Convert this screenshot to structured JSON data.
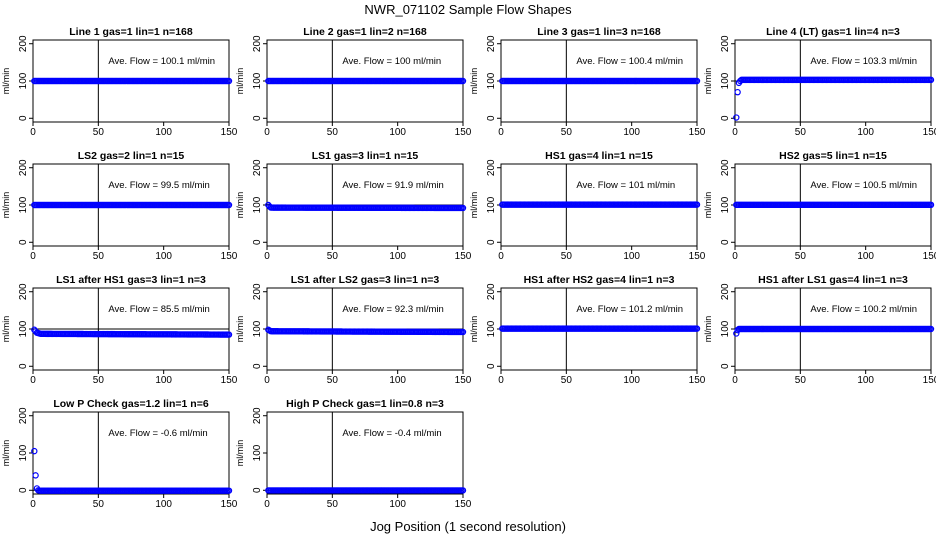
{
  "title": "NWR_071102  Sample Flow Shapes",
  "xlabel": "Jog Position (1 second resolution)",
  "chart_data": [
    {
      "type": "scatter",
      "title": "Line 1 gas=1 lin=1 n=168",
      "ylabel": "ml/min",
      "annotation": "Ave. Flow = 100.1 ml/min",
      "vline": 50,
      "hline": 100,
      "xlim": [
        0,
        150
      ],
      "ylim": [
        -10,
        210
      ],
      "xticks": [
        0,
        50,
        100,
        150
      ],
      "yticks": [
        0,
        100,
        200
      ],
      "color": "#0000ff",
      "series": [
        {
          "x": [
            1,
            150
          ],
          "y": [
            100,
            100
          ],
          "mode": "dense"
        }
      ]
    },
    {
      "type": "scatter",
      "title": "Line 2 gas=1 lin=2 n=168",
      "ylabel": "ml/min",
      "annotation": "Ave. Flow = 100 ml/min",
      "vline": 50,
      "hline": 100,
      "xlim": [
        0,
        150
      ],
      "ylim": [
        -10,
        210
      ],
      "xticks": [
        0,
        50,
        100,
        150
      ],
      "yticks": [
        0,
        100,
        200
      ],
      "color": "#0000ff",
      "series": [
        {
          "x": [
            1,
            150
          ],
          "y": [
            100,
            100
          ],
          "mode": "dense"
        }
      ]
    },
    {
      "type": "scatter",
      "title": "Line 3 gas=1 lin=3 n=168",
      "ylabel": "ml/min",
      "annotation": "Ave. Flow = 100.4 ml/min",
      "vline": 50,
      "hline": 100,
      "xlim": [
        0,
        150
      ],
      "ylim": [
        -10,
        210
      ],
      "xticks": [
        0,
        50,
        100,
        150
      ],
      "yticks": [
        0,
        100,
        200
      ],
      "color": "#0000ff",
      "series": [
        {
          "x": [
            1,
            150
          ],
          "y": [
            100,
            100
          ],
          "mode": "dense"
        }
      ]
    },
    {
      "type": "scatter",
      "title": "Line 4 (LT) gas=1 lin=4 n=3",
      "ylabel": "ml/min",
      "annotation": "Ave. Flow = 103.3 ml/min",
      "vline": 50,
      "hline": 100,
      "xlim": [
        0,
        150
      ],
      "ylim": [
        -10,
        210
      ],
      "xticks": [
        0,
        50,
        100,
        150
      ],
      "yticks": [
        0,
        100,
        200
      ],
      "color": "#0000ff",
      "series": [
        {
          "x": [
            1,
            2,
            3,
            4,
            5,
            150
          ],
          "y": [
            2,
            70,
            95,
            100,
            103,
            103
          ],
          "mode": "dense_from_4"
        }
      ]
    },
    {
      "type": "scatter",
      "title": "LS2 gas=2 lin=1 n=15",
      "ylabel": "ml/min",
      "annotation": "Ave. Flow = 99.5 ml/min",
      "vline": 50,
      "hline": 100,
      "xlim": [
        0,
        150
      ],
      "ylim": [
        -10,
        210
      ],
      "xticks": [
        0,
        50,
        100,
        150
      ],
      "yticks": [
        0,
        100,
        200
      ],
      "color": "#0000ff",
      "series": [
        {
          "x": [
            1,
            150
          ],
          "y": [
            100,
            100
          ],
          "mode": "dense"
        }
      ]
    },
    {
      "type": "scatter",
      "title": "LS1 gas=3 lin=1 n=15",
      "ylabel": "ml/min",
      "annotation": "Ave. Flow = 91.9 ml/min",
      "vline": 50,
      "hline": 100,
      "xlim": [
        0,
        150
      ],
      "ylim": [
        -10,
        210
      ],
      "xticks": [
        0,
        50,
        100,
        150
      ],
      "yticks": [
        0,
        100,
        200
      ],
      "color": "#0000ff",
      "series": [
        {
          "x": [
            1,
            2,
            3,
            150
          ],
          "y": [
            100,
            96,
            93,
            92
          ],
          "mode": "dense"
        }
      ]
    },
    {
      "type": "scatter",
      "title": "HS1 gas=4 lin=1 n=15",
      "ylabel": "ml/min",
      "annotation": "Ave. Flow = 101 ml/min",
      "vline": 50,
      "hline": 100,
      "xlim": [
        0,
        150
      ],
      "ylim": [
        -10,
        210
      ],
      "xticks": [
        0,
        50,
        100,
        150
      ],
      "yticks": [
        0,
        100,
        200
      ],
      "color": "#0000ff",
      "series": [
        {
          "x": [
            1,
            150
          ],
          "y": [
            101,
            101
          ],
          "mode": "dense"
        }
      ]
    },
    {
      "type": "scatter",
      "title": "HS2 gas=5 lin=1 n=15",
      "ylabel": "ml/min",
      "annotation": "Ave. Flow = 100.5 ml/min",
      "vline": 50,
      "hline": 100,
      "xlim": [
        0,
        150
      ],
      "ylim": [
        -10,
        210
      ],
      "xticks": [
        0,
        50,
        100,
        150
      ],
      "yticks": [
        0,
        100,
        200
      ],
      "color": "#0000ff",
      "series": [
        {
          "x": [
            1,
            150
          ],
          "y": [
            100.5,
            100.5
          ],
          "mode": "dense"
        }
      ]
    },
    {
      "type": "scatter",
      "title": "LS1 after HS1 gas=3 lin=1 n=3",
      "ylabel": "ml/min",
      "annotation": "Ave. Flow = 85.5 ml/min",
      "vline": 50,
      "hline": 100,
      "xlim": [
        0,
        150
      ],
      "ylim": [
        -10,
        210
      ],
      "xticks": [
        0,
        50,
        100,
        150
      ],
      "yticks": [
        0,
        100,
        200
      ],
      "color": "#0000ff",
      "series": [
        {
          "x": [
            1,
            3,
            6,
            150
          ],
          "y": [
            98,
            90,
            87,
            85
          ],
          "mode": "dense"
        }
      ]
    },
    {
      "type": "scatter",
      "title": "LS1 after LS2 gas=3 lin=1 n=3",
      "ylabel": "ml/min",
      "annotation": "Ave. Flow = 92.3 ml/min",
      "vline": 50,
      "hline": 100,
      "xlim": [
        0,
        150
      ],
      "ylim": [
        -10,
        210
      ],
      "xticks": [
        0,
        50,
        100,
        150
      ],
      "yticks": [
        0,
        100,
        200
      ],
      "color": "#0000ff",
      "series": [
        {
          "x": [
            1,
            3,
            150
          ],
          "y": [
            98,
            94,
            92
          ],
          "mode": "dense"
        }
      ]
    },
    {
      "type": "scatter",
      "title": "HS1 after HS2 gas=4 lin=1 n=3",
      "ylabel": "ml/min",
      "annotation": "Ave. Flow = 101.2 ml/min",
      "vline": 50,
      "hline": 100,
      "xlim": [
        0,
        150
      ],
      "ylim": [
        -10,
        210
      ],
      "xticks": [
        0,
        50,
        100,
        150
      ],
      "yticks": [
        0,
        100,
        200
      ],
      "color": "#0000ff",
      "series": [
        {
          "x": [
            1,
            150
          ],
          "y": [
            101,
            101
          ],
          "mode": "dense"
        }
      ]
    },
    {
      "type": "scatter",
      "title": "HS1 after LS1 gas=4 lin=1 n=3",
      "ylabel": "ml/min",
      "annotation": "Ave. Flow = 100.2 ml/min",
      "vline": 50,
      "hline": 100,
      "xlim": [
        0,
        150
      ],
      "ylim": [
        -10,
        210
      ],
      "xticks": [
        0,
        50,
        100,
        150
      ],
      "yticks": [
        0,
        100,
        200
      ],
      "color": "#0000ff",
      "series": [
        {
          "x": [
            1,
            2,
            3,
            150
          ],
          "y": [
            88,
            97,
            100,
            100
          ],
          "mode": "dense"
        }
      ]
    },
    {
      "type": "scatter",
      "title": "Low P Check gas=1.2 lin=1 n=6",
      "ylabel": "ml/min",
      "annotation": "Ave. Flow = -0.6 ml/min",
      "vline": 50,
      "hline": 0,
      "xlim": [
        0,
        150
      ],
      "ylim": [
        -10,
        210
      ],
      "xticks": [
        0,
        50,
        100,
        150
      ],
      "yticks": [
        0,
        100,
        200
      ],
      "color": "#0000ff",
      "series": [
        {
          "x": [
            1,
            2,
            3,
            4,
            5,
            150
          ],
          "y": [
            105,
            40,
            5,
            0,
            -1,
            -1
          ],
          "mode": "dense_from_4"
        }
      ]
    },
    {
      "type": "scatter",
      "title": "High P Check gas=1 lin=0.8 n=3",
      "ylabel": "ml/min",
      "annotation": "Ave. Flow = -0.4 ml/min",
      "vline": 50,
      "hline": 0,
      "xlim": [
        0,
        150
      ],
      "ylim": [
        -10,
        210
      ],
      "xticks": [
        0,
        50,
        100,
        150
      ],
      "yticks": [
        0,
        100,
        200
      ],
      "color": "#0000ff",
      "series": [
        {
          "x": [
            1,
            150
          ],
          "y": [
            -0.4,
            -0.4
          ],
          "mode": "dense"
        }
      ]
    }
  ]
}
